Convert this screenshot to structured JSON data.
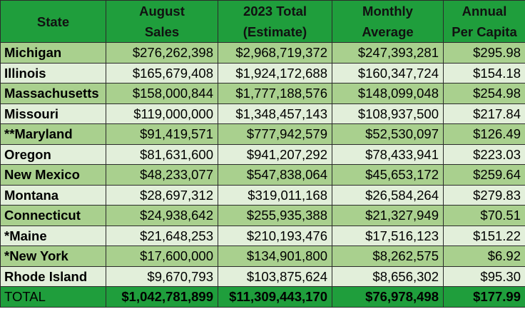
{
  "headers": {
    "state": [
      "State"
    ],
    "august": [
      "August",
      "Sales"
    ],
    "total2023": [
      "2023 Total",
      "(Estimate)"
    ],
    "monthly": [
      "Monthly",
      "Average"
    ],
    "annual": [
      "Annual",
      "Per Capita"
    ]
  },
  "rows": [
    {
      "state": "Michigan",
      "august": "$276,262,398",
      "total": "$2,968,719,372",
      "monthly": "$247,393,281",
      "annual": "$295.98"
    },
    {
      "state": "Illinois",
      "august": "$165,679,408",
      "total": "$1,924,172,688",
      "monthly": "$160,347,724",
      "annual": "$154.18"
    },
    {
      "state": "Massachusetts",
      "august": "$158,000,844",
      "total": "$1,777,188,576",
      "monthly": "$148,099,048",
      "annual": "$254.98"
    },
    {
      "state": "Missouri",
      "august": "$119,000,000",
      "total": "$1,348,457,143",
      "monthly": "$108,937,500",
      "annual": "$217.84"
    },
    {
      "state": "**Maryland",
      "august": "$91,419,571",
      "total": "$777,942,579",
      "monthly": "$52,530,097",
      "annual": "$126.49"
    },
    {
      "state": "Oregon",
      "august": "$81,631,600",
      "total": "$941,207,292",
      "monthly": "$78,433,941",
      "annual": "$223.03"
    },
    {
      "state": "New Mexico",
      "august": "$48,233,077",
      "total": "$547,838,064",
      "monthly": "$45,653,172",
      "annual": "$259.64"
    },
    {
      "state": "Montana",
      "august": "$28,697,312",
      "total": "$319,011,168",
      "monthly": "$26,584,264",
      "annual": "$279.83"
    },
    {
      "state": "Connecticut",
      "august": "$24,938,642",
      "total": "$255,935,388",
      "monthly": "$21,327,949",
      "annual": "$70.51"
    },
    {
      "state": "*Maine",
      "august": "$21,648,253",
      "total": "$210,193,476",
      "monthly": "$17,516,123",
      "annual": "$151.22"
    },
    {
      "state": "*New York",
      "august": "$17,600,000",
      "total": "$134,901,800",
      "monthly": "$8,262,575",
      "annual": "$6.92"
    },
    {
      "state": "Rhode Island",
      "august": "$9,670,793",
      "total": "$103,875,624",
      "monthly": "$8,656,302",
      "annual": "$95.30"
    }
  ],
  "totals": {
    "state": "TOTAL",
    "august": "$1,042,781,899",
    "total": "$11,309,443,170",
    "monthly": "$76,978,498",
    "annual": "$177.99"
  },
  "colors": {
    "header": "#1f9e3c",
    "row_dark": "#a9d08e",
    "row_light": "#e2efda",
    "total": "#1f9e3c",
    "border": "#2b2b2b"
  }
}
